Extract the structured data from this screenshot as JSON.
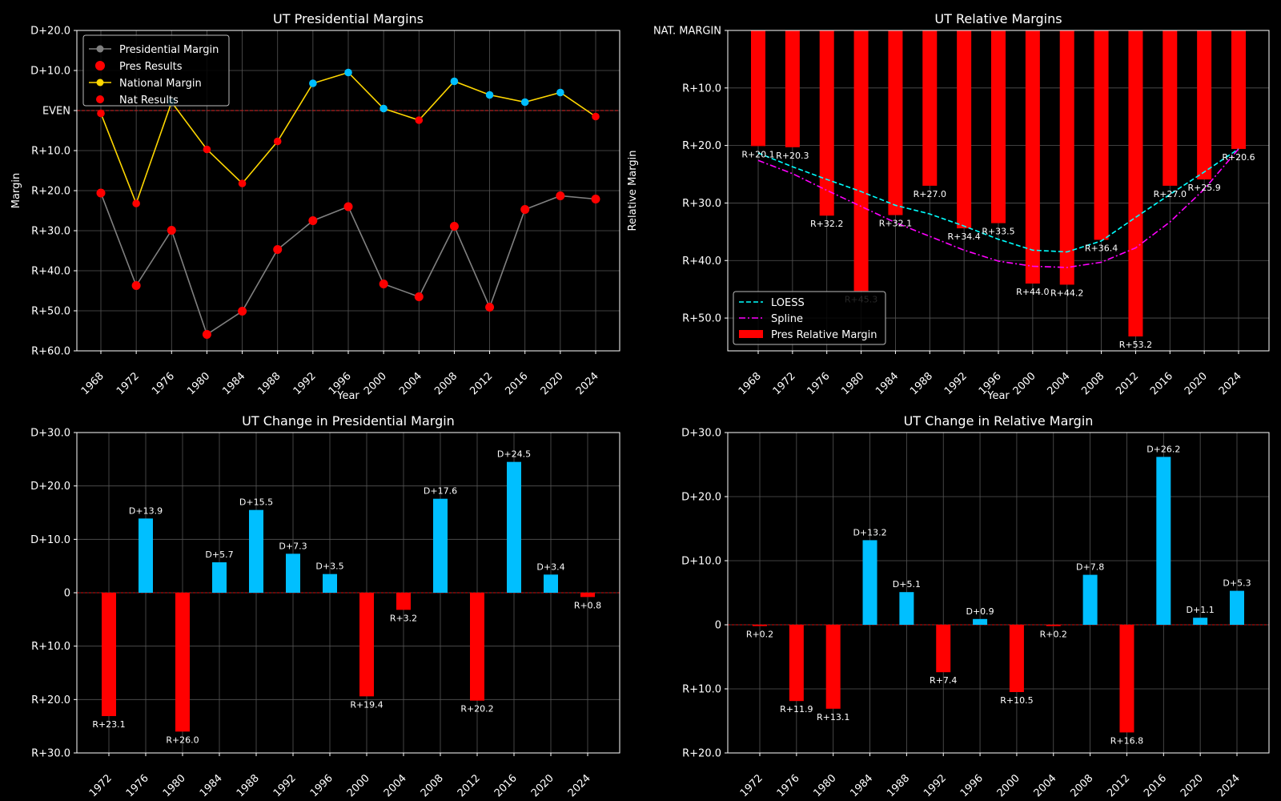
{
  "chart_data": [
    {
      "type": "line",
      "title": "UT Presidential Margins",
      "xlabel": "Year",
      "ylabel": "Margin",
      "x": [
        1968,
        1972,
        1976,
        1980,
        1984,
        1988,
        1992,
        1996,
        2000,
        2004,
        2008,
        2012,
        2016,
        2020,
        2024
      ],
      "ylim": [
        -60,
        20
      ],
      "yticks": [
        {
          "v": 20,
          "label": "D+20.0"
        },
        {
          "v": 10,
          "label": "D+10.0"
        },
        {
          "v": 0,
          "label": "EVEN"
        },
        {
          "v": -10,
          "label": "R+10.0"
        },
        {
          "v": -20,
          "label": "R+20.0"
        },
        {
          "v": -30,
          "label": "R+30.0"
        },
        {
          "v": -40,
          "label": "R+40.0"
        },
        {
          "v": -50,
          "label": "R+50.0"
        },
        {
          "v": -60,
          "label": "R+60.0"
        }
      ],
      "series": [
        {
          "name": "Presidential Margin",
          "values": [
            -20.6,
            -43.7,
            -29.9,
            -55.9,
            -50.1,
            -34.7,
            -27.5,
            -24.0,
            -43.3,
            -46.5,
            -28.9,
            -49.1,
            -24.7,
            -21.3,
            -22.1
          ]
        },
        {
          "name": "National Margin",
          "values": [
            -0.7,
            -23.2,
            2.1,
            -9.7,
            -18.2,
            -7.7,
            6.8,
            9.5,
            0.5,
            -2.4,
            7.3,
            3.9,
            2.1,
            4.5,
            -1.5
          ]
        }
      ],
      "legend": [
        "Presidential Margin",
        "Pres Results",
        "National Margin",
        "Nat Results"
      ],
      "legend_position": "top-left",
      "grid": true,
      "colors": {
        "pres_line": "#808080",
        "nat_line": "#FFD700",
        "dem": "#00BFFF",
        "rep": "#FF0000",
        "reference": "#B22222"
      }
    },
    {
      "type": "bar",
      "title": "UT Relative Margins",
      "xlabel": "Year",
      "ylabel": "Relative Margin",
      "x": [
        1968,
        1972,
        1976,
        1980,
        1984,
        1988,
        1992,
        1996,
        2000,
        2004,
        2008,
        2012,
        2016,
        2020,
        2024
      ],
      "values": [
        -20.1,
        -20.3,
        -32.2,
        -45.3,
        -32.1,
        -27.0,
        -34.4,
        -33.5,
        -44.0,
        -44.2,
        -36.4,
        -53.2,
        -27.0,
        -25.9,
        -20.6
      ],
      "labels": [
        "R+20.1",
        "R+20.3",
        "R+32.2",
        "R+45.3",
        "R+32.1",
        "R+27.0",
        "R+34.4",
        "R+33.5",
        "R+44.0",
        "R+44.2",
        "R+36.4",
        "R+53.2",
        "R+27.0",
        "R+25.9",
        "R+20.6"
      ],
      "ylim": [
        -55.7,
        0
      ],
      "yticks": [
        {
          "v": 0,
          "label": "NAT. MARGIN"
        },
        {
          "v": -10,
          "label": "R+10.0"
        },
        {
          "v": -20,
          "label": "R+20.0"
        },
        {
          "v": -30,
          "label": "R+30.0"
        },
        {
          "v": -40,
          "label": "R+40.0"
        },
        {
          "v": -50,
          "label": "R+50.0"
        }
      ],
      "series": [
        {
          "name": "LOESS",
          "values": [
            -21.3,
            -23.7,
            -25.9,
            -28.0,
            -30.4,
            -31.9,
            -34.0,
            -36.3,
            -38.2,
            -38.5,
            -36.6,
            -32.5,
            -28.5,
            -24.6,
            -20.6
          ]
        },
        {
          "name": "Spline",
          "values": [
            -22.6,
            -24.9,
            -27.8,
            -30.6,
            -33.4,
            -35.8,
            -38.2,
            -40.1,
            -41.0,
            -41.2,
            -40.3,
            -37.8,
            -33.3,
            -27.6,
            -20.6
          ]
        }
      ],
      "legend": [
        "LOESS",
        "Spline",
        "Pres Relative Margin"
      ],
      "legend_position": "lower-left",
      "grid": true,
      "colors": {
        "bar": "#FF0000",
        "loess": "#00FFFF",
        "spline": "#FF00FF"
      }
    },
    {
      "type": "bar",
      "title": "UT Change in Presidential Margin",
      "x": [
        1972,
        1976,
        1980,
        1984,
        1988,
        1992,
        1996,
        2000,
        2004,
        2008,
        2012,
        2016,
        2020,
        2024
      ],
      "values": [
        -23.1,
        13.9,
        -26.0,
        5.7,
        15.5,
        7.3,
        3.5,
        -19.4,
        -3.2,
        17.6,
        -20.2,
        24.5,
        3.4,
        -0.8
      ],
      "labels": [
        "R+23.1",
        "D+13.9",
        "R+26.0",
        "D+5.7",
        "D+15.5",
        "D+7.3",
        "D+3.5",
        "R+19.4",
        "R+3.2",
        "D+17.6",
        "R+20.2",
        "D+24.5",
        "D+3.4",
        "R+0.8"
      ],
      "ylim": [
        -30,
        30
      ],
      "yticks": [
        {
          "v": 30,
          "label": "D+30.0"
        },
        {
          "v": 20,
          "label": "D+20.0"
        },
        {
          "v": 10,
          "label": "D+10.0"
        },
        {
          "v": 0,
          "label": "0"
        },
        {
          "v": -10,
          "label": "R+10.0"
        },
        {
          "v": -20,
          "label": "R+20.0"
        },
        {
          "v": -30,
          "label": "R+30.0"
        }
      ],
      "grid": true,
      "colors": {
        "dem": "#00BFFF",
        "rep": "#FF0000"
      }
    },
    {
      "type": "bar",
      "title": "UT Change in Relative Margin",
      "x": [
        1972,
        1976,
        1980,
        1984,
        1988,
        1992,
        1996,
        2000,
        2004,
        2008,
        2012,
        2016,
        2020,
        2024
      ],
      "values": [
        -0.2,
        -11.9,
        -13.1,
        13.2,
        5.1,
        -7.4,
        0.9,
        -10.5,
        -0.2,
        7.8,
        -16.8,
        26.2,
        1.1,
        5.3
      ],
      "labels": [
        "R+0.2",
        "R+11.9",
        "R+13.1",
        "D+13.2",
        "D+5.1",
        "R+7.4",
        "D+0.9",
        "R+10.5",
        "R+0.2",
        "D+7.8",
        "R+16.8",
        "D+26.2",
        "D+1.1",
        "D+5.3"
      ],
      "ylim": [
        -20,
        30
      ],
      "yticks": [
        {
          "v": 30,
          "label": "D+30.0"
        },
        {
          "v": 20,
          "label": "D+20.0"
        },
        {
          "v": 10,
          "label": "D+10.0"
        },
        {
          "v": 0,
          "label": "0"
        },
        {
          "v": -10,
          "label": "R+10.0"
        },
        {
          "v": -20,
          "label": "R+20.0"
        }
      ],
      "grid": true,
      "colors": {
        "dem": "#00BFFF",
        "rep": "#FF0000"
      }
    }
  ]
}
